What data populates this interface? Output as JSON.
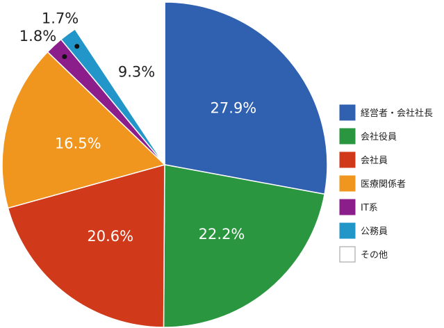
{
  "chart_data": {
    "type": "pie",
    "slices": [
      {
        "name": "経営者・会社社長",
        "value": 27.9,
        "label": "27.9%",
        "color": "#3060b0"
      },
      {
        "name": "会社役員",
        "value": 22.2,
        "label": "22.2%",
        "color": "#2a9640"
      },
      {
        "name": "会社員",
        "value": 20.6,
        "label": "20.6%",
        "color": "#d03a1a"
      },
      {
        "name": "医療関係者",
        "value": 16.5,
        "label": "16.5%",
        "color": "#f0961e"
      },
      {
        "name": "IT系",
        "value": 1.8,
        "label": "1.8%",
        "color": "#8c1e8c"
      },
      {
        "name": "公務員",
        "value": 1.7,
        "label": "1.7%",
        "color": "#2296c8"
      },
      {
        "name": "その他",
        "value": 9.3,
        "label": "9.3%",
        "color": "#ffffff"
      }
    ],
    "legend_position": "right"
  }
}
